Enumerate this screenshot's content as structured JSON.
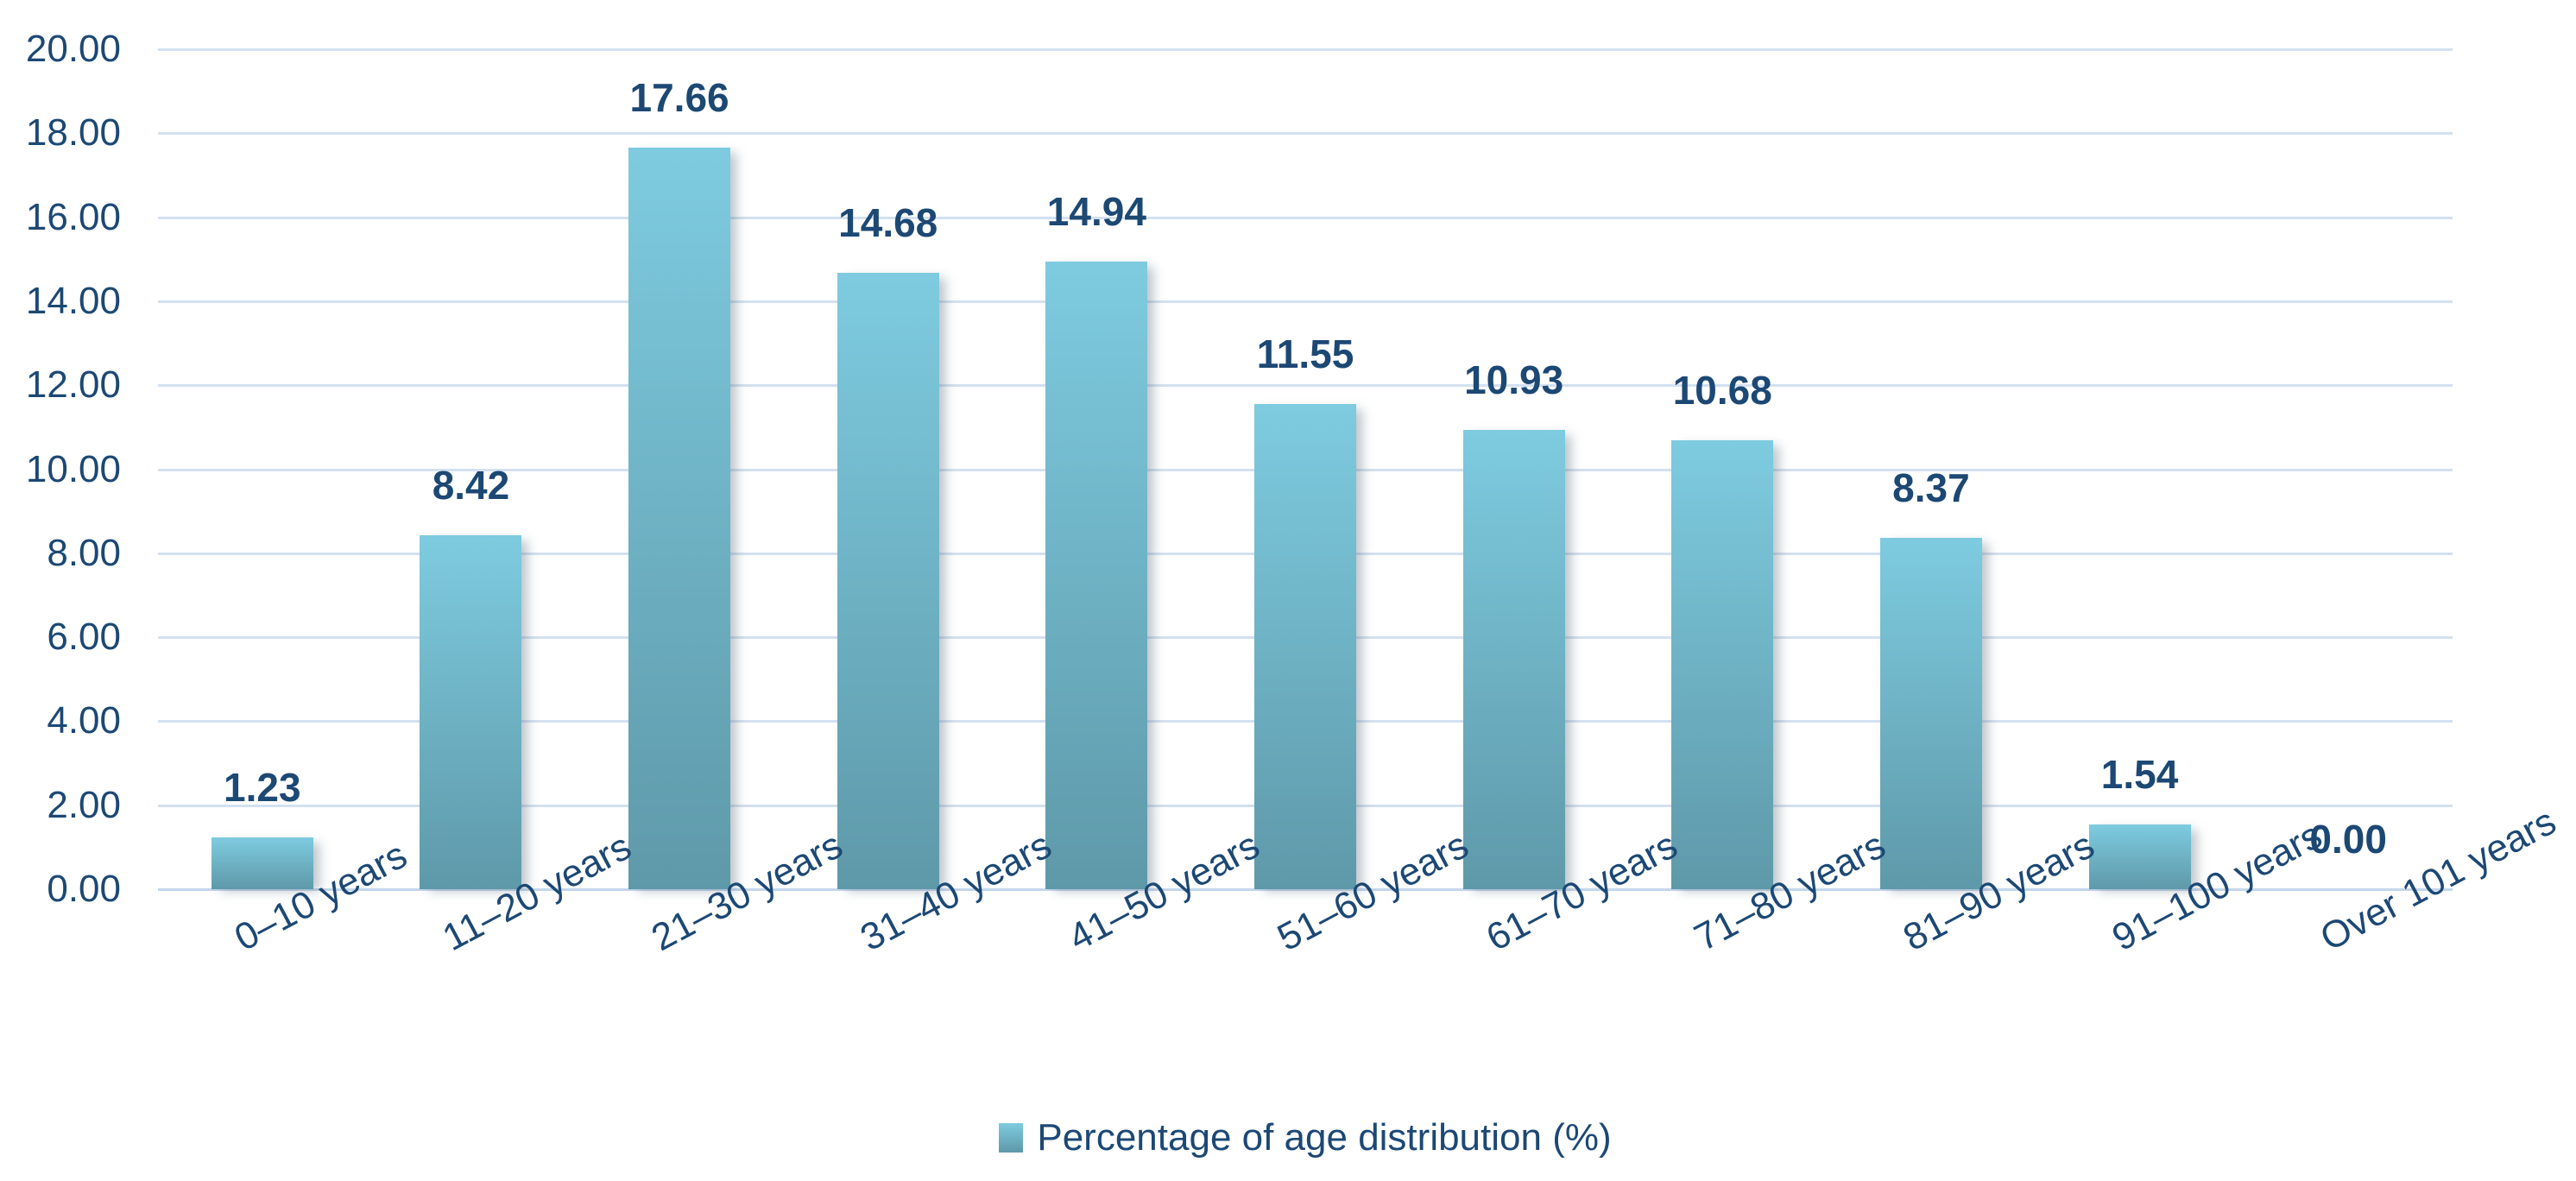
{
  "chart_data": {
    "type": "bar",
    "title": "",
    "categories": [
      "0–10 years",
      "11–20 years",
      "21–30 years",
      "31–40 years",
      "41–50 years",
      "51–60 years",
      "61–70 years",
      "71–80 years",
      "81–90 years",
      "91–100 years",
      "Over 101 years"
    ],
    "values": [
      1.23,
      8.42,
      17.66,
      14.68,
      14.94,
      11.55,
      10.93,
      10.68,
      8.37,
      1.54,
      0.0
    ],
    "value_labels": [
      "1.23",
      "8.42",
      "17.66",
      "14.68",
      "14.94",
      "11.55",
      "10.93",
      "10.68",
      "8.37",
      "1.54",
      "0.00"
    ],
    "y_ticks": [
      "0.00",
      "2.00",
      "4.00",
      "6.00",
      "8.00",
      "10.00",
      "12.00",
      "14.00",
      "16.00",
      "18.00",
      "20.00"
    ],
    "ylim": [
      0,
      20
    ],
    "y_step": 2,
    "grid": true,
    "legend_position": "bottom",
    "series": [
      {
        "name": "Percentage of age distribution (%)",
        "values": [
          1.23,
          8.42,
          17.66,
          14.68,
          14.94,
          11.55,
          10.93,
          10.68,
          8.37,
          1.54,
          0.0
        ]
      }
    ]
  },
  "legend": {
    "label": "Percentage of age distribution (%)"
  },
  "colors": {
    "bar_top": "#7ECBE0",
    "bar_bottom": "#5E99A9",
    "label_text": "#1C4874",
    "gridline": "#D3E1F1",
    "axis_line": "#C3D6EC"
  }
}
